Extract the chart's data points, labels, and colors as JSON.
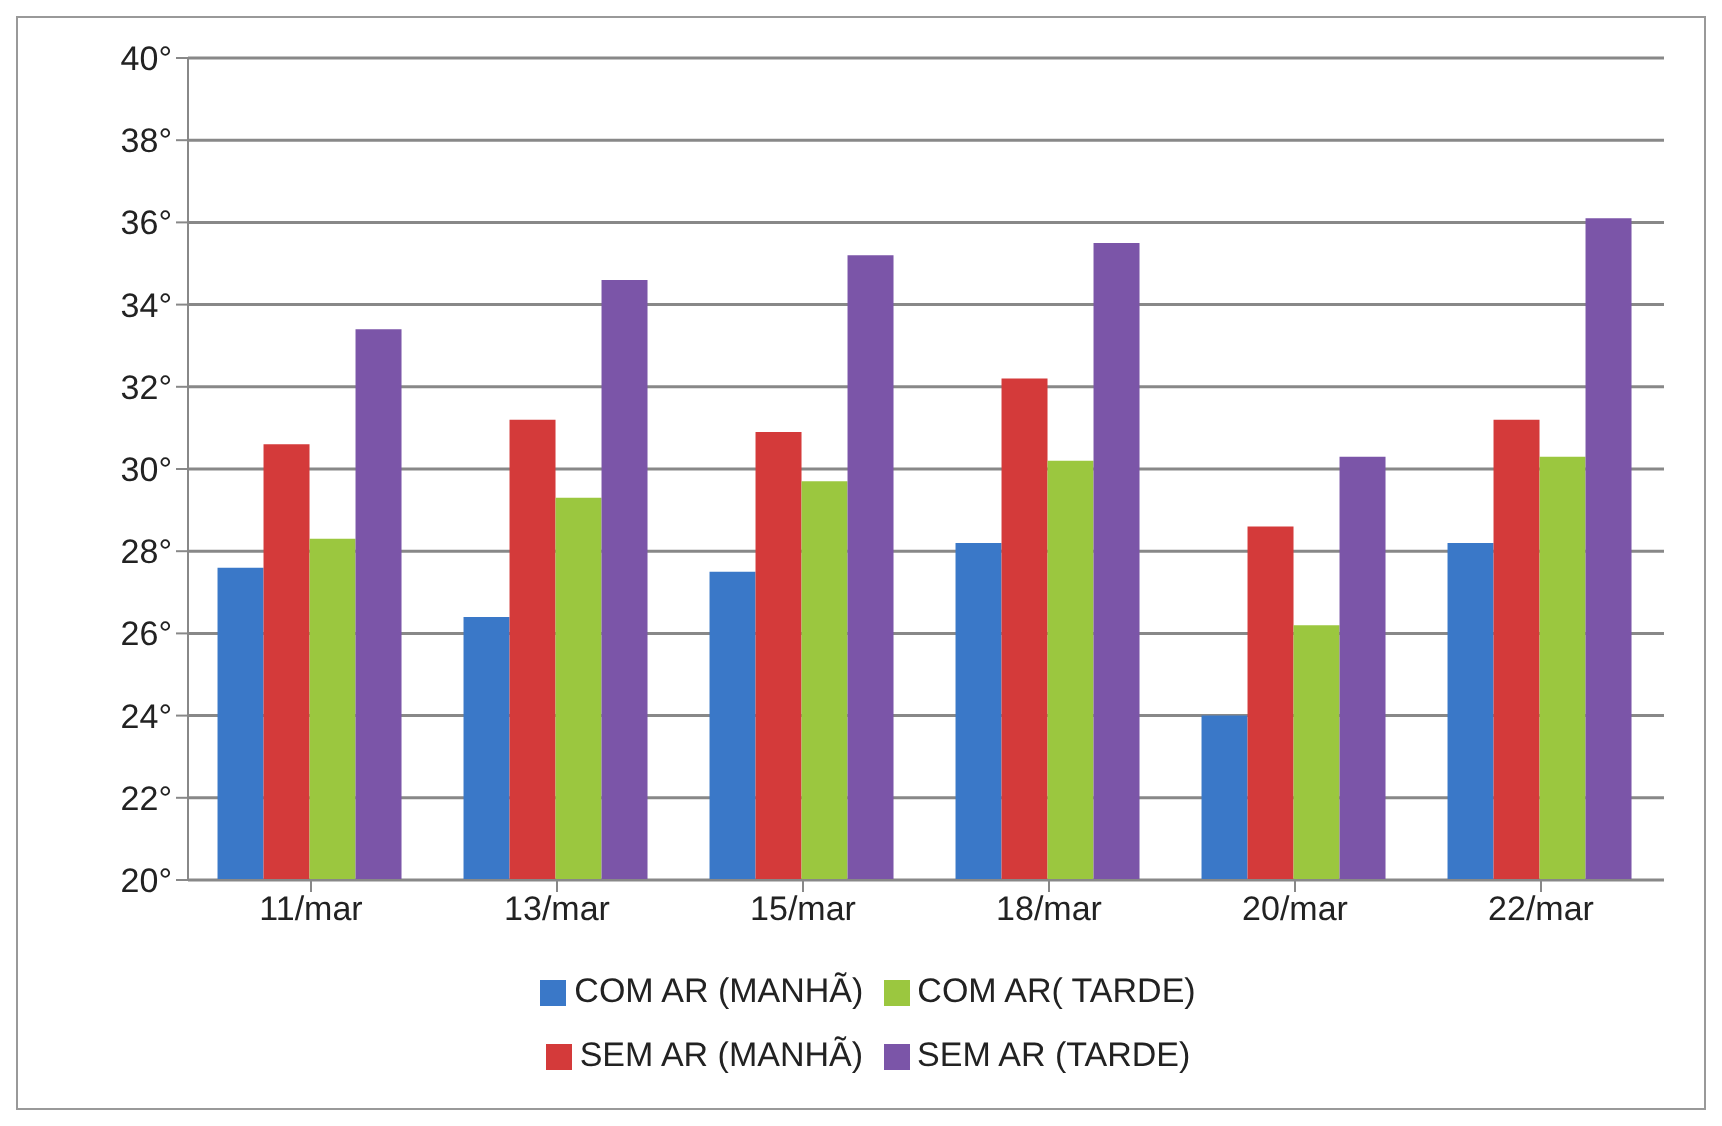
{
  "chart_data": {
    "type": "bar",
    "categories": [
      "11/mar",
      "13/mar",
      "15/mar",
      "18/mar",
      "20/mar",
      "22/mar"
    ],
    "series": [
      {
        "name": "COM AR (MANHÃ)",
        "color": "#3a78c8",
        "values": [
          27.6,
          26.4,
          27.5,
          28.2,
          24.0,
          28.2
        ]
      },
      {
        "name": "SEM AR (MANHÃ)",
        "color": "#d43a3a",
        "values": [
          30.6,
          31.2,
          30.9,
          32.2,
          28.6,
          31.2
        ]
      },
      {
        "name": "COM AR( TARDE)",
        "color": "#9bc73f",
        "values": [
          28.3,
          29.3,
          29.7,
          30.2,
          26.2,
          30.3
        ]
      },
      {
        "name": "SEM AR (TARDE)",
        "color": "#7b55a8",
        "values": [
          33.4,
          34.6,
          35.2,
          35.5,
          30.3,
          36.1
        ]
      }
    ],
    "ylim": [
      20,
      40
    ],
    "yticks": [
      {
        "value": 20,
        "label": "20°"
      },
      {
        "value": 22,
        "label": "22°"
      },
      {
        "value": 24,
        "label": "24°"
      },
      {
        "value": 26,
        "label": "26°"
      },
      {
        "value": 28,
        "label": "28°"
      },
      {
        "value": 30,
        "label": "30°"
      },
      {
        "value": 32,
        "label": "32°"
      },
      {
        "value": 34,
        "label": "34°"
      },
      {
        "value": 36,
        "label": "36°"
      },
      {
        "value": 38,
        "label": "38°"
      },
      {
        "value": 40,
        "label": "40°"
      }
    ],
    "grid": "y",
    "legend": "bottom"
  }
}
